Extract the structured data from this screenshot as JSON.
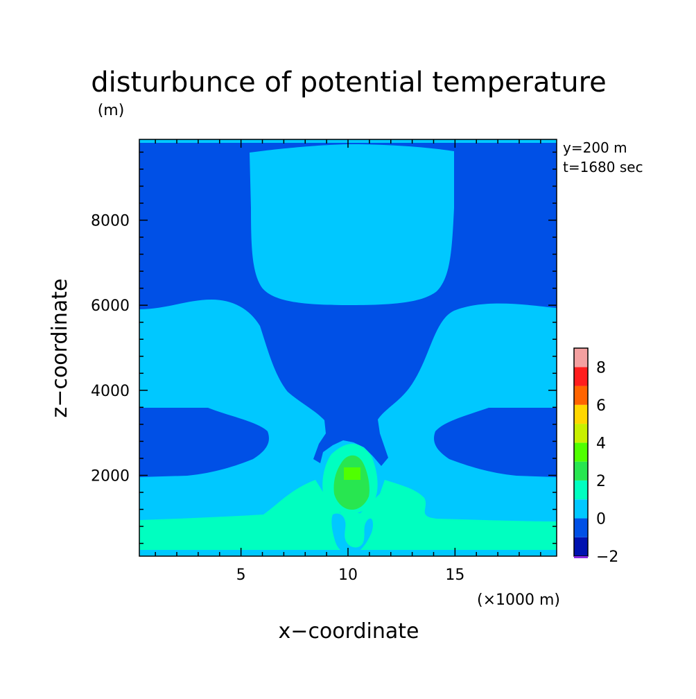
{
  "chart_data": {
    "type": "heatmap",
    "title": "disturbunce of potential temperature",
    "ylabel": "z−coordinate",
    "yunit": "(m)",
    "xlabel": "x−coordinate",
    "xunit": "(×1000 m)",
    "annotations": [
      "y=200 m",
      "t=1680 sec"
    ],
    "xlim": [
      0.25,
      19.75
    ],
    "ylim": [
      100,
      9900
    ],
    "x_ticks": [
      5,
      10,
      15
    ],
    "x_tick_labels": [
      "5",
      "10",
      "15"
    ],
    "y_ticks": [
      2000,
      4000,
      6000,
      8000
    ],
    "y_tick_labels": [
      "2000",
      "4000",
      "6000",
      "8000"
    ],
    "colorbar": {
      "levels": [
        -2,
        -1,
        0,
        1,
        2,
        3,
        4,
        5,
        6,
        7,
        8,
        9
      ],
      "labels": [
        "−2",
        "0",
        "2",
        "4",
        "6",
        "8"
      ],
      "colors": [
        "#0012b0",
        "#0050e6",
        "#00c8ff",
        "#00ffc0",
        "#28e650",
        "#50ff00",
        "#c8f000",
        "#ffd700",
        "#ff6400",
        "#ff1e1e",
        "#f4a0a0"
      ]
    },
    "grid": false,
    "legend": "colorbar right-bottom"
  }
}
